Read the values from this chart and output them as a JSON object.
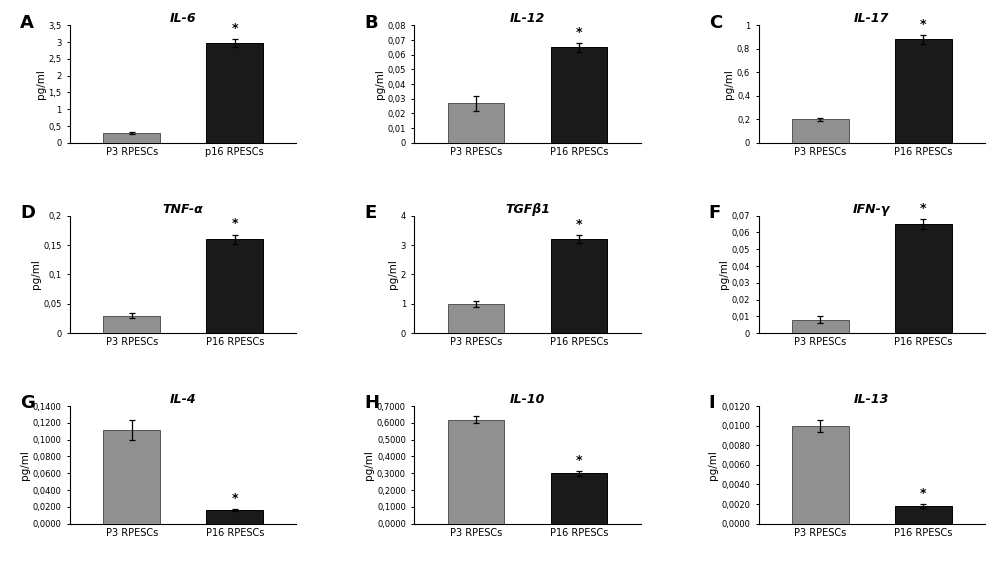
{
  "panels": [
    {
      "label": "A",
      "title": "IL-6",
      "ylabel": "pg/ml",
      "categories": [
        "P3 RPESCs",
        "p16 RPESCs"
      ],
      "values": [
        0.3,
        2.98
      ],
      "errors": [
        0.03,
        0.12
      ],
      "colors": [
        "#909090",
        "#1a1a1a"
      ],
      "ylim": [
        0,
        3.5
      ],
      "yticks": [
        0,
        0.5,
        1.0,
        1.5,
        2.0,
        2.5,
        3.0,
        3.5
      ],
      "ytick_labels": [
        "0",
        "0,5",
        "1",
        "1,5",
        "2",
        "2,5",
        "3",
        "3,5"
      ],
      "star_on": 1
    },
    {
      "label": "B",
      "title": "IL-12",
      "ylabel": "pg/ml",
      "categories": [
        "P3 RPESCs",
        "P16 RPESCs"
      ],
      "values": [
        0.027,
        0.065
      ],
      "errors": [
        0.005,
        0.003
      ],
      "colors": [
        "#909090",
        "#1a1a1a"
      ],
      "ylim": [
        0,
        0.08
      ],
      "yticks": [
        0,
        0.01,
        0.02,
        0.03,
        0.04,
        0.05,
        0.06,
        0.07,
        0.08
      ],
      "ytick_labels": [
        "0",
        "0,01",
        "0,02",
        "0,03",
        "0,04",
        "0,05",
        "0,06",
        "0,07",
        "0,08"
      ],
      "star_on": 1
    },
    {
      "label": "C",
      "title": "IL-17",
      "ylabel": "pg/ml",
      "categories": [
        "P3 RPESCs",
        "P16 RPESCs"
      ],
      "values": [
        0.2,
        0.88
      ],
      "errors": [
        0.015,
        0.035
      ],
      "colors": [
        "#909090",
        "#1a1a1a"
      ],
      "ylim": [
        0,
        1.0
      ],
      "yticks": [
        0,
        0.2,
        0.4,
        0.6,
        0.8,
        1.0
      ],
      "ytick_labels": [
        "0",
        "0,2",
        "0,4",
        "0,6",
        "0,8",
        "1"
      ],
      "star_on": 1
    },
    {
      "label": "D",
      "title": "TNF-α",
      "ylabel": "pg/ml",
      "categories": [
        "P3 RPESCs",
        "P16 RPESCs"
      ],
      "values": [
        0.03,
        0.16
      ],
      "errors": [
        0.004,
        0.008
      ],
      "colors": [
        "#909090",
        "#1a1a1a"
      ],
      "ylim": [
        0,
        0.2
      ],
      "yticks": [
        0,
        0.05,
        0.1,
        0.15,
        0.2
      ],
      "ytick_labels": [
        "0",
        "0,05",
        "0,1",
        "0,15",
        "0,2"
      ],
      "star_on": 1
    },
    {
      "label": "E",
      "title": "TGFβ1",
      "ylabel": "pg/ml",
      "categories": [
        "P3 RPESCs",
        "P16 RPESCs"
      ],
      "values": [
        1.0,
        3.2
      ],
      "errors": [
        0.1,
        0.13
      ],
      "colors": [
        "#909090",
        "#1a1a1a"
      ],
      "ylim": [
        0,
        4.0
      ],
      "yticks": [
        0,
        1,
        2,
        3,
        4
      ],
      "ytick_labels": [
        "0",
        "1",
        "2",
        "3",
        "4"
      ],
      "star_on": 1
    },
    {
      "label": "F",
      "title": "IFN-γ",
      "ylabel": "pg/ml",
      "categories": [
        "P3 RPESCs",
        "P16 RPESCs"
      ],
      "values": [
        0.008,
        0.065
      ],
      "errors": [
        0.002,
        0.003
      ],
      "colors": [
        "#909090",
        "#1a1a1a"
      ],
      "ylim": [
        0,
        0.07
      ],
      "yticks": [
        0,
        0.01,
        0.02,
        0.03,
        0.04,
        0.05,
        0.06,
        0.07
      ],
      "ytick_labels": [
        "0",
        "0,01",
        "0,02",
        "0,03",
        "0,04",
        "0,05",
        "0,06",
        "0,07"
      ],
      "star_on": 1
    },
    {
      "label": "G",
      "title": "IL-4",
      "ylabel": "pg/ml",
      "categories": [
        "P3 RPESCs",
        "P16 RPESCs"
      ],
      "values": [
        0.112,
        0.016
      ],
      "errors": [
        0.012,
        0.001
      ],
      "colors": [
        "#909090",
        "#1a1a1a"
      ],
      "ylim": [
        0,
        0.14
      ],
      "yticks": [
        0,
        0.02,
        0.04,
        0.06,
        0.08,
        0.1,
        0.12,
        0.14
      ],
      "ytick_labels": [
        "0,0000",
        "0,0200",
        "0,0400",
        "0,0600",
        "0,0800",
        "0,1000",
        "0,1200",
        "0,1400"
      ],
      "star_on": 1
    },
    {
      "label": "H",
      "title": "IL-10",
      "ylabel": "pg/ml",
      "categories": [
        "P3 RPESCs",
        "P16 RPESCs"
      ],
      "values": [
        0.62,
        0.3
      ],
      "errors": [
        0.018,
        0.015
      ],
      "colors": [
        "#909090",
        "#1a1a1a"
      ],
      "ylim": [
        0,
        0.7
      ],
      "yticks": [
        0,
        0.1,
        0.2,
        0.3,
        0.4,
        0.5,
        0.6,
        0.7
      ],
      "ytick_labels": [
        "0,0000",
        "0,1000",
        "0,2000",
        "0,3000",
        "0,4000",
        "0,5000",
        "0,6000",
        "0,7000"
      ],
      "star_on": 1
    },
    {
      "label": "I",
      "title": "IL-13",
      "ylabel": "pg/ml",
      "categories": [
        "P3 RPESCs",
        "P16 RPESCs"
      ],
      "values": [
        0.01,
        0.0018
      ],
      "errors": [
        0.0006,
        0.0002
      ],
      "colors": [
        "#909090",
        "#1a1a1a"
      ],
      "ylim": [
        0,
        0.012
      ],
      "yticks": [
        0,
        0.002,
        0.004,
        0.006,
        0.008,
        0.01,
        0.012
      ],
      "ytick_labels": [
        "0,0000",
        "0,0020",
        "0,0040",
        "0,0060",
        "0,0080",
        "0,0100",
        "0,0120"
      ],
      "star_on": 1
    }
  ],
  "bar_width": 0.55,
  "background_color": "#ffffff",
  "fig_width": 10.0,
  "fig_height": 5.63,
  "dpi": 100
}
